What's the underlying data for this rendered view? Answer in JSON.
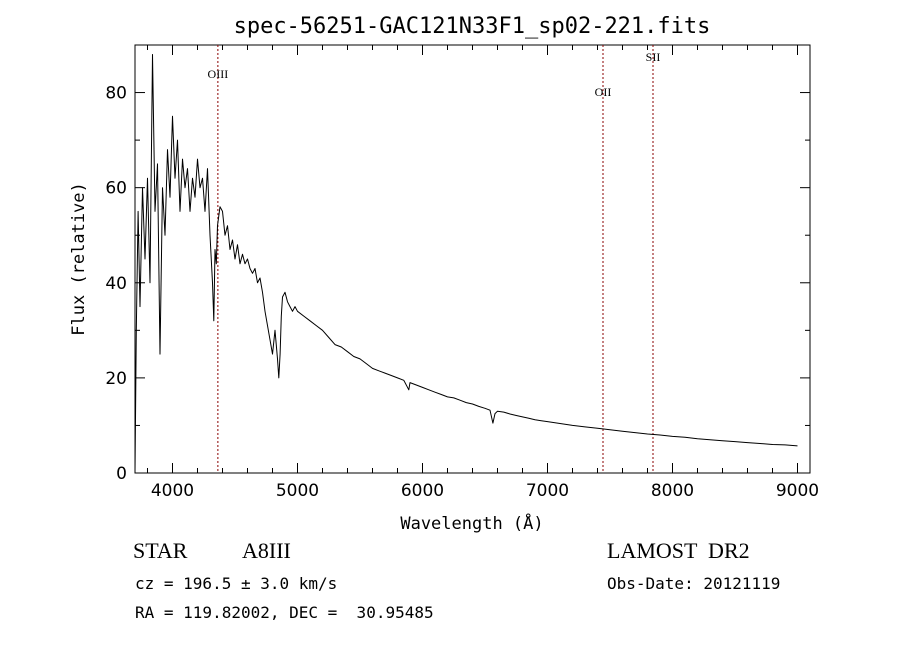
{
  "chart_data": {
    "type": "line",
    "title": "spec-56251-GAC121N33F1_sp02-221.fits",
    "xlabel": "Wavelength (Å)",
    "ylabel": "Flux (relative)",
    "xlim": [
      3700,
      9100
    ],
    "ylim": [
      0,
      90
    ],
    "xticks": [
      4000,
      5000,
      6000,
      7000,
      8000,
      9000
    ],
    "yticks": [
      0,
      20,
      40,
      60,
      80
    ],
    "grid": false,
    "line_color": "#000000",
    "series": [
      {
        "x": [
          3700,
          3710,
          3725,
          3740,
          3760,
          3780,
          3800,
          3820,
          3840,
          3860,
          3880,
          3900,
          3920,
          3940,
          3960,
          3980,
          4000,
          4020,
          4040,
          4060,
          4080,
          4100,
          4120,
          4140,
          4160,
          4180,
          4200,
          4220,
          4240,
          4260,
          4280,
          4300,
          4320,
          4330,
          4340,
          4350,
          4360,
          4380,
          4400,
          4420,
          4440,
          4460,
          4480,
          4500,
          4520,
          4540,
          4560,
          4580,
          4600,
          4620,
          4640,
          4660,
          4680,
          4700,
          4720,
          4740,
          4760,
          4780,
          4800,
          4820,
          4840,
          4850,
          4861,
          4870,
          4880,
          4900,
          4920,
          4940,
          4960,
          4980,
          5000,
          5050,
          5100,
          5150,
          5200,
          5250,
          5300,
          5350,
          5400,
          5450,
          5500,
          5550,
          5600,
          5650,
          5700,
          5750,
          5800,
          5850,
          5890,
          5900,
          5950,
          6000,
          6050,
          6100,
          6150,
          6200,
          6250,
          6300,
          6350,
          6400,
          6450,
          6500,
          6540,
          6563,
          6580,
          6600,
          6650,
          6700,
          6750,
          6800,
          6850,
          6900,
          6950,
          7000,
          7100,
          7200,
          7300,
          7400,
          7500,
          7600,
          7700,
          7800,
          7900,
          8000,
          8100,
          8200,
          8300,
          8400,
          8500,
          8600,
          8700,
          8800,
          8900,
          9000
        ],
        "y": [
          0,
          30,
          55,
          35,
          60,
          45,
          62,
          40,
          88,
          55,
          65,
          25,
          60,
          50,
          68,
          58,
          75,
          62,
          70,
          55,
          66,
          60,
          64,
          55,
          62,
          58,
          66,
          60,
          62,
          55,
          64,
          50,
          40,
          32,
          47,
          44,
          52,
          56,
          55,
          50,
          52,
          47,
          49,
          45,
          48,
          44,
          46,
          44,
          45,
          43,
          42,
          43,
          40,
          41,
          38,
          34,
          31,
          28,
          25,
          30,
          24,
          20,
          25,
          33,
          37,
          38,
          36,
          35,
          34,
          35,
          34,
          33,
          32,
          31,
          30,
          28.5,
          27,
          26.5,
          25.5,
          24.5,
          24,
          23,
          22,
          21.5,
          21,
          20.5,
          20,
          19.5,
          17.5,
          19,
          18.5,
          18,
          17.5,
          17,
          16.5,
          16,
          15.8,
          15.3,
          14.8,
          14.5,
          14,
          13.6,
          13.2,
          10.5,
          12.5,
          13,
          12.8,
          12.4,
          12.1,
          11.8,
          11.5,
          11.2,
          11,
          10.8,
          10.4,
          10,
          9.7,
          9.4,
          9.1,
          8.8,
          8.5,
          8.2,
          8,
          7.7,
          7.5,
          7.2,
          7,
          6.8,
          6.6,
          6.4,
          6.2,
          6,
          5.9,
          5.7
        ]
      }
    ],
    "lines": [
      {
        "x": 4363,
        "label": "OIII"
      },
      {
        "x": 7444,
        "label": "OII"
      },
      {
        "x": 7844,
        "label": "SII"
      }
    ],
    "line_marker_color": "#8b0000"
  },
  "info": {
    "object_class": "STAR",
    "subclass": "A8III",
    "survey": "LAMOST  DR2",
    "cz": "cz = 196.5 ± 3.0 km/s",
    "obs_date": "Obs-Date: 20121119",
    "coords": "RA = 119.82002, DEC =  30.95485"
  }
}
